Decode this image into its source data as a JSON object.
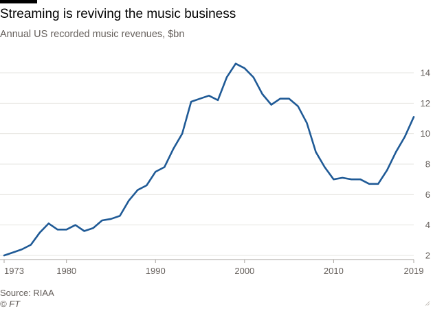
{
  "header": {
    "title": "Streaming is reviving the music business",
    "subtitle": "Annual US recorded music revenues, $bn"
  },
  "footer": {
    "source": "Source: RIAA",
    "credit": "© FT"
  },
  "colors": {
    "line": "#1f5a96",
    "grid": "#e6e4e0",
    "axis_text": "#66605c",
    "accent_bar": "#000000"
  },
  "chart_data": {
    "type": "line",
    "title": "Streaming is reviving the music business",
    "subtitle": "Annual US recorded music revenues, $bn",
    "xlabel": "",
    "ylabel": "",
    "xlim": [
      1973,
      2019
    ],
    "ylim": [
      2,
      15
    ],
    "x_ticks": [
      1973,
      1980,
      1990,
      2000,
      2010,
      2019
    ],
    "y_ticks": [
      2,
      4,
      6,
      8,
      10,
      12,
      14
    ],
    "grid": true,
    "y_axis_side": "right",
    "series": [
      {
        "x": [
          1973,
          1974,
          1975,
          1976,
          1977,
          1978,
          1979,
          1980,
          1981,
          1982,
          1983,
          1984,
          1985,
          1986,
          1987,
          1988,
          1989,
          1990,
          1991,
          1992,
          1993,
          1994,
          1995,
          1996,
          1997,
          1998,
          1999,
          2000,
          2001,
          2002,
          2003,
          2004,
          2005,
          2006,
          2007,
          2008,
          2009,
          2010,
          2011,
          2012,
          2013,
          2014,
          2015,
          2016,
          2017,
          2018,
          2019
        ],
        "values": [
          2.0,
          2.2,
          2.4,
          2.7,
          3.5,
          4.1,
          3.7,
          3.7,
          4.0,
          3.6,
          3.8,
          4.3,
          4.4,
          4.6,
          5.6,
          6.3,
          6.6,
          7.5,
          7.8,
          9.0,
          10.0,
          12.1,
          12.3,
          12.5,
          12.2,
          13.7,
          14.6,
          14.3,
          13.7,
          12.6,
          11.9,
          12.3,
          12.3,
          11.8,
          10.7,
          8.8,
          7.8,
          7.0,
          7.1,
          7.0,
          7.0,
          6.7,
          6.7,
          7.6,
          8.8,
          9.8,
          11.1
        ]
      }
    ]
  }
}
